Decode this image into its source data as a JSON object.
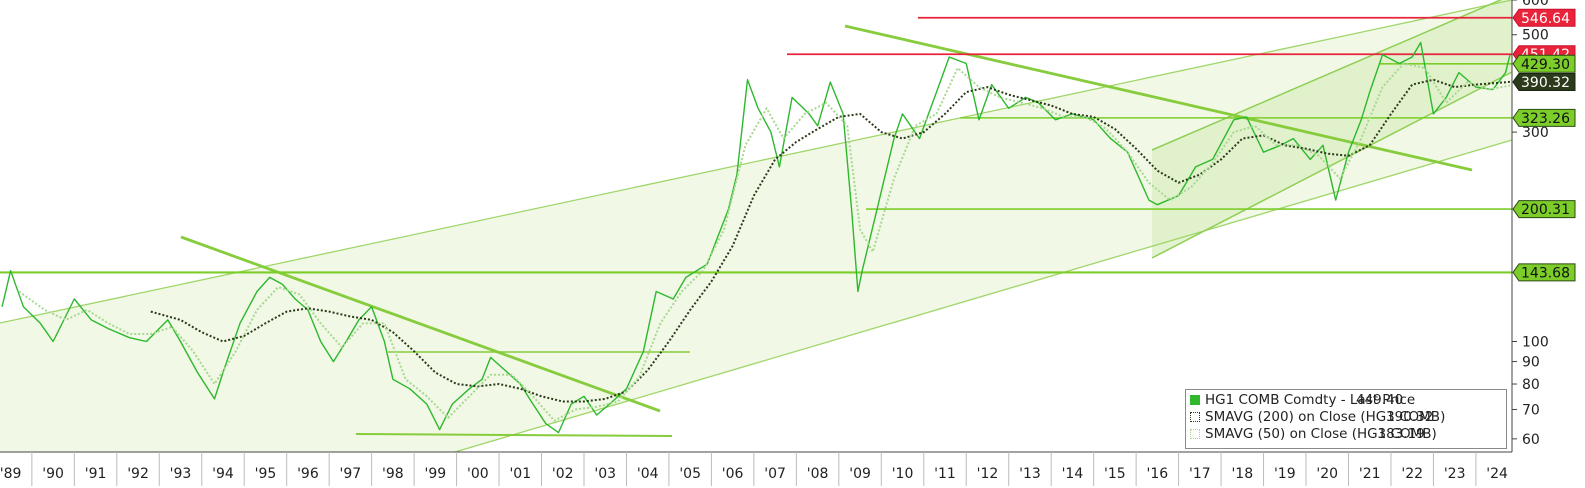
{
  "chart_data": {
    "type": "line",
    "y_scale": "log",
    "ylim": [
      56,
      600
    ],
    "xlim": [
      1988.75,
      2024.35
    ],
    "y_ticks": [
      60,
      70,
      80,
      90,
      100,
      300,
      500,
      600
    ],
    "y_tick_labels": [
      "60",
      "70",
      "80",
      "90",
      "100",
      "300",
      "500",
      "600"
    ],
    "x_ticks": [
      1989,
      1990,
      1991,
      1992,
      1993,
      1994,
      1995,
      1996,
      1997,
      1998,
      1999,
      2000,
      2001,
      2002,
      2003,
      2004,
      2005,
      2006,
      2007,
      2008,
      2009,
      2010,
      2011,
      2012,
      2013,
      2014,
      2015,
      2016,
      2017,
      2018,
      2019,
      2020,
      2021,
      2022,
      2023,
      2024
    ],
    "x_tick_labels": [
      "'89",
      "'90",
      "'91",
      "'92",
      "'93",
      "'94",
      "'95",
      "'96",
      "'97",
      "'98",
      "'99",
      "'00",
      "'01",
      "'02",
      "'03",
      "'04",
      "'05",
      "'06",
      "'07",
      "'08",
      "'09",
      "'10",
      "'11",
      "'12",
      "'13",
      "'14",
      "'15",
      "'16",
      "'17",
      "'18",
      "'19",
      "'20",
      "'21",
      "'22",
      "'23",
      "'24"
    ],
    "series": [
      {
        "name": "HG1 COMB Comdty - Last Price",
        "last": "449.40",
        "color": "#2db82d",
        "style": "solid",
        "points": [
          [
            1988.8,
            120
          ],
          [
            1989.0,
            145
          ],
          [
            1989.3,
            120
          ],
          [
            1989.7,
            110
          ],
          [
            1990.0,
            100
          ],
          [
            1990.5,
            125
          ],
          [
            1990.9,
            112
          ],
          [
            1991.3,
            107
          ],
          [
            1991.8,
            102
          ],
          [
            1992.2,
            100
          ],
          [
            1992.7,
            112
          ],
          [
            1993.0,
            100
          ],
          [
            1993.4,
            85
          ],
          [
            1993.8,
            74
          ],
          [
            1994.0,
            85
          ],
          [
            1994.4,
            110
          ],
          [
            1994.8,
            130
          ],
          [
            1995.1,
            140
          ],
          [
            1995.4,
            135
          ],
          [
            1995.7,
            125
          ],
          [
            1996.0,
            118
          ],
          [
            1996.3,
            100
          ],
          [
            1996.6,
            90
          ],
          [
            1996.9,
            100
          ],
          [
            1997.2,
            112
          ],
          [
            1997.5,
            120
          ],
          [
            1997.8,
            100
          ],
          [
            1998.0,
            82
          ],
          [
            1998.4,
            78
          ],
          [
            1998.8,
            72
          ],
          [
            1999.1,
            63
          ],
          [
            1999.4,
            72
          ],
          [
            1999.8,
            78
          ],
          [
            2000.1,
            82
          ],
          [
            2000.3,
            92
          ],
          [
            2000.7,
            85
          ],
          [
            2001.0,
            80
          ],
          [
            2001.3,
            72
          ],
          [
            2001.6,
            65
          ],
          [
            2001.9,
            62
          ],
          [
            2002.2,
            72
          ],
          [
            2002.5,
            75
          ],
          [
            2002.8,
            68
          ],
          [
            2003.1,
            72
          ],
          [
            2003.5,
            78
          ],
          [
            2003.9,
            95
          ],
          [
            2004.2,
            130
          ],
          [
            2004.6,
            125
          ],
          [
            2004.9,
            140
          ],
          [
            2005.4,
            150
          ],
          [
            2005.9,
            200
          ],
          [
            2006.1,
            240
          ],
          [
            2006.35,
            395
          ],
          [
            2006.6,
            340
          ],
          [
            2006.9,
            300
          ],
          [
            2007.1,
            250
          ],
          [
            2007.4,
            360
          ],
          [
            2007.8,
            330
          ],
          [
            2008.0,
            310
          ],
          [
            2008.3,
            390
          ],
          [
            2008.6,
            330
          ],
          [
            2008.8,
            200
          ],
          [
            2008.95,
            130
          ],
          [
            2009.05,
            145
          ],
          [
            2009.4,
            200
          ],
          [
            2009.8,
            290
          ],
          [
            2010.0,
            330
          ],
          [
            2010.4,
            290
          ],
          [
            2010.8,
            370
          ],
          [
            2011.1,
            445
          ],
          [
            2011.5,
            430
          ],
          [
            2011.8,
            320
          ],
          [
            2012.1,
            385
          ],
          [
            2012.5,
            340
          ],
          [
            2012.9,
            360
          ],
          [
            2013.2,
            350
          ],
          [
            2013.6,
            320
          ],
          [
            2014.0,
            330
          ],
          [
            2014.5,
            320
          ],
          [
            2014.9,
            290
          ],
          [
            2015.3,
            270
          ],
          [
            2015.8,
            210
          ],
          [
            2016.0,
            205
          ],
          [
            2016.5,
            215
          ],
          [
            2016.9,
            250
          ],
          [
            2017.3,
            260
          ],
          [
            2017.8,
            320
          ],
          [
            2018.1,
            325
          ],
          [
            2018.5,
            270
          ],
          [
            2018.9,
            280
          ],
          [
            2019.2,
            290
          ],
          [
            2019.6,
            260
          ],
          [
            2019.9,
            280
          ],
          [
            2020.2,
            210
          ],
          [
            2020.5,
            270
          ],
          [
            2020.8,
            320
          ],
          [
            2021.0,
            370
          ],
          [
            2021.3,
            450
          ],
          [
            2021.7,
            430
          ],
          [
            2022.0,
            445
          ],
          [
            2022.2,
            480
          ],
          [
            2022.5,
            330
          ],
          [
            2022.8,
            360
          ],
          [
            2023.1,
            410
          ],
          [
            2023.5,
            380
          ],
          [
            2023.9,
            375
          ],
          [
            2024.2,
            410
          ],
          [
            2024.3,
            449.4
          ]
        ]
      },
      {
        "name": "SMAVG (200)  on Close (HG1 COMB)",
        "last": "390.32",
        "color": "#2b3a1a",
        "style": "dotted",
        "points": [
          [
            1992.3,
            117
          ],
          [
            1993.0,
            112
          ],
          [
            1993.5,
            105
          ],
          [
            1994.0,
            100
          ],
          [
            1994.5,
            103
          ],
          [
            1995.0,
            110
          ],
          [
            1995.5,
            117
          ],
          [
            1996.0,
            119
          ],
          [
            1996.5,
            117
          ],
          [
            1997.0,
            114
          ],
          [
            1997.5,
            112
          ],
          [
            1998.0,
            105
          ],
          [
            1998.5,
            95
          ],
          [
            1999.0,
            85
          ],
          [
            1999.5,
            80
          ],
          [
            2000.0,
            79
          ],
          [
            2000.5,
            80
          ],
          [
            2001.0,
            78
          ],
          [
            2001.5,
            75
          ],
          [
            2002.0,
            73
          ],
          [
            2002.5,
            73
          ],
          [
            2003.0,
            74
          ],
          [
            2003.5,
            77
          ],
          [
            2004.0,
            86
          ],
          [
            2004.5,
            100
          ],
          [
            2005.0,
            118
          ],
          [
            2005.5,
            137
          ],
          [
            2006.0,
            165
          ],
          [
            2006.5,
            215
          ],
          [
            2007.0,
            260
          ],
          [
            2007.5,
            285
          ],
          [
            2008.0,
            305
          ],
          [
            2008.5,
            325
          ],
          [
            2009.0,
            330
          ],
          [
            2009.5,
            300
          ],
          [
            2010.0,
            290
          ],
          [
            2010.5,
            300
          ],
          [
            2011.0,
            330
          ],
          [
            2011.5,
            370
          ],
          [
            2012.0,
            380
          ],
          [
            2012.5,
            365
          ],
          [
            2013.0,
            355
          ],
          [
            2013.5,
            345
          ],
          [
            2014.0,
            330
          ],
          [
            2014.5,
            325
          ],
          [
            2015.0,
            305
          ],
          [
            2015.5,
            275
          ],
          [
            2016.0,
            245
          ],
          [
            2016.5,
            230
          ],
          [
            2017.0,
            240
          ],
          [
            2017.5,
            260
          ],
          [
            2018.0,
            290
          ],
          [
            2018.5,
            295
          ],
          [
            2019.0,
            280
          ],
          [
            2019.5,
            275
          ],
          [
            2020.0,
            268
          ],
          [
            2020.5,
            265
          ],
          [
            2021.0,
            280
          ],
          [
            2021.5,
            330
          ],
          [
            2022.0,
            385
          ],
          [
            2022.5,
            395
          ],
          [
            2023.0,
            380
          ],
          [
            2023.5,
            385
          ],
          [
            2024.3,
            390.32
          ]
        ]
      },
      {
        "name": "SMAVG (50)  on Close (HG1 COMB)",
        "last": "383.19",
        "color": "#a8d890",
        "style": "dotted",
        "points": [
          [
            1989.2,
            130
          ],
          [
            1989.8,
            118
          ],
          [
            1990.3,
            112
          ],
          [
            1990.8,
            118
          ],
          [
            1991.3,
            110
          ],
          [
            1991.8,
            104
          ],
          [
            1992.3,
            104
          ],
          [
            1992.8,
            108
          ],
          [
            1993.3,
            95
          ],
          [
            1993.8,
            80
          ],
          [
            1994.3,
            95
          ],
          [
            1994.8,
            118
          ],
          [
            1995.3,
            133
          ],
          [
            1995.8,
            128
          ],
          [
            1996.3,
            110
          ],
          [
            1996.8,
            97
          ],
          [
            1997.3,
            110
          ],
          [
            1997.8,
            110
          ],
          [
            1998.3,
            82
          ],
          [
            1998.8,
            75
          ],
          [
            1999.3,
            67
          ],
          [
            1999.8,
            75
          ],
          [
            2000.3,
            84
          ],
          [
            2000.8,
            84
          ],
          [
            2001.3,
            75
          ],
          [
            2001.8,
            66
          ],
          [
            2002.3,
            70
          ],
          [
            2002.8,
            71
          ],
          [
            2003.3,
            73
          ],
          [
            2003.8,
            83
          ],
          [
            2004.3,
            110
          ],
          [
            2004.8,
            130
          ],
          [
            2005.3,
            145
          ],
          [
            2005.8,
            180
          ],
          [
            2006.3,
            280
          ],
          [
            2006.8,
            340
          ],
          [
            2007.2,
            290
          ],
          [
            2007.7,
            330
          ],
          [
            2008.2,
            350
          ],
          [
            2008.7,
            310
          ],
          [
            2009.0,
            180
          ],
          [
            2009.3,
            160
          ],
          [
            2009.8,
            235
          ],
          [
            2010.3,
            310
          ],
          [
            2010.8,
            330
          ],
          [
            2011.3,
            420
          ],
          [
            2011.8,
            380
          ],
          [
            2012.3,
            360
          ],
          [
            2012.8,
            350
          ],
          [
            2013.3,
            340
          ],
          [
            2013.8,
            325
          ],
          [
            2014.3,
            325
          ],
          [
            2014.8,
            305
          ],
          [
            2015.3,
            270
          ],
          [
            2015.8,
            230
          ],
          [
            2016.3,
            210
          ],
          [
            2016.8,
            225
          ],
          [
            2017.3,
            255
          ],
          [
            2017.8,
            300
          ],
          [
            2018.3,
            310
          ],
          [
            2018.8,
            280
          ],
          [
            2019.3,
            280
          ],
          [
            2019.8,
            265
          ],
          [
            2020.3,
            235
          ],
          [
            2020.8,
            290
          ],
          [
            2021.3,
            380
          ],
          [
            2021.8,
            430
          ],
          [
            2022.3,
            420
          ],
          [
            2022.8,
            350
          ],
          [
            2023.3,
            390
          ],
          [
            2023.8,
            375
          ],
          [
            2024.3,
            383.19
          ]
        ]
      }
    ],
    "horizontal_levels": [
      {
        "value": 546.64,
        "label": "546.64",
        "color": "#e8233a",
        "kind": "red"
      },
      {
        "value": 451.42,
        "label": "451.42",
        "color": "#e8233a",
        "kind": "red"
      },
      {
        "value": 429.3,
        "label": "429.30",
        "color": "#7ccd2a",
        "kind": "green"
      },
      {
        "value": 390.32,
        "label": "390.32",
        "color": "#2b3a1a",
        "kind": "dark"
      },
      {
        "value": 323.26,
        "label": "323.26",
        "color": "#7ccd2a",
        "kind": "green"
      },
      {
        "value": 200.31,
        "label": "200.31",
        "color": "#7ccd2a",
        "kind": "green"
      },
      {
        "value": 143.68,
        "label": "143.68",
        "color": "#7ccd2a",
        "kind": "green"
      }
    ],
    "legend_position": "bottom-right",
    "grid": false
  }
}
